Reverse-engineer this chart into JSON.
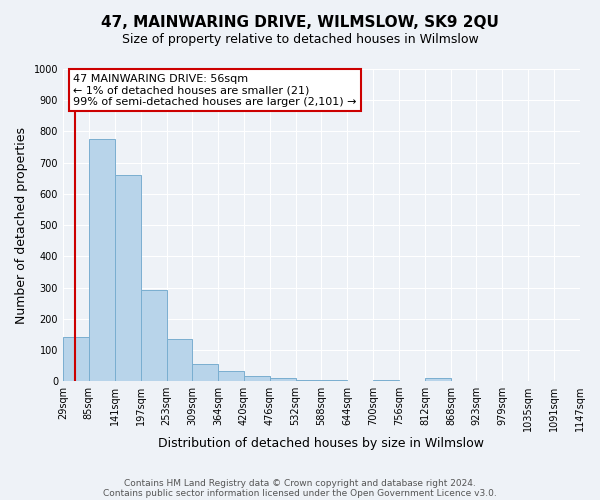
{
  "title": "47, MAINWARING DRIVE, WILMSLOW, SK9 2QU",
  "subtitle": "Size of property relative to detached houses in Wilmslow",
  "xlabel": "Distribution of detached houses by size in Wilmslow",
  "ylabel": "Number of detached properties",
  "bar_values": [
    140,
    775,
    660,
    293,
    135,
    55,
    32,
    18,
    10,
    5,
    5,
    0,
    5,
    0,
    10,
    0,
    0,
    0,
    0,
    0
  ],
  "bin_starts": [
    29,
    85,
    141,
    197,
    253,
    309,
    364,
    420,
    476,
    532,
    588,
    644,
    700,
    756,
    812,
    868,
    923,
    979,
    1035,
    1091
  ],
  "bin_width": 56,
  "bin_labels": [
    "29sqm",
    "85sqm",
    "141sqm",
    "197sqm",
    "253sqm",
    "309sqm",
    "364sqm",
    "420sqm",
    "476sqm",
    "532sqm",
    "588sqm",
    "644sqm",
    "700sqm",
    "756sqm",
    "812sqm",
    "868sqm",
    "923sqm",
    "979sqm",
    "1035sqm",
    "1091sqm",
    "1147sqm"
  ],
  "bar_color": "#b8d4ea",
  "bar_edge_color": "#7aaed0",
  "red_line_x": 56,
  "ylim": [
    0,
    1000
  ],
  "yticks": [
    0,
    100,
    200,
    300,
    400,
    500,
    600,
    700,
    800,
    900,
    1000
  ],
  "annotation_line1": "47 MAINWARING DRIVE: 56sqm",
  "annotation_line2": "← 1% of detached houses are smaller (21)",
  "annotation_line3": "99% of semi-detached houses are larger (2,101) →",
  "annotation_box_facecolor": "#ffffff",
  "annotation_box_edgecolor": "#cc0000",
  "footer_line1": "Contains HM Land Registry data © Crown copyright and database right 2024.",
  "footer_line2": "Contains public sector information licensed under the Open Government Licence v3.0.",
  "background_color": "#eef2f7",
  "grid_color": "#ffffff",
  "title_fontsize": 11,
  "subtitle_fontsize": 9,
  "axis_label_fontsize": 9,
  "tick_fontsize": 7,
  "annotation_fontsize": 8,
  "footer_fontsize": 6.5
}
